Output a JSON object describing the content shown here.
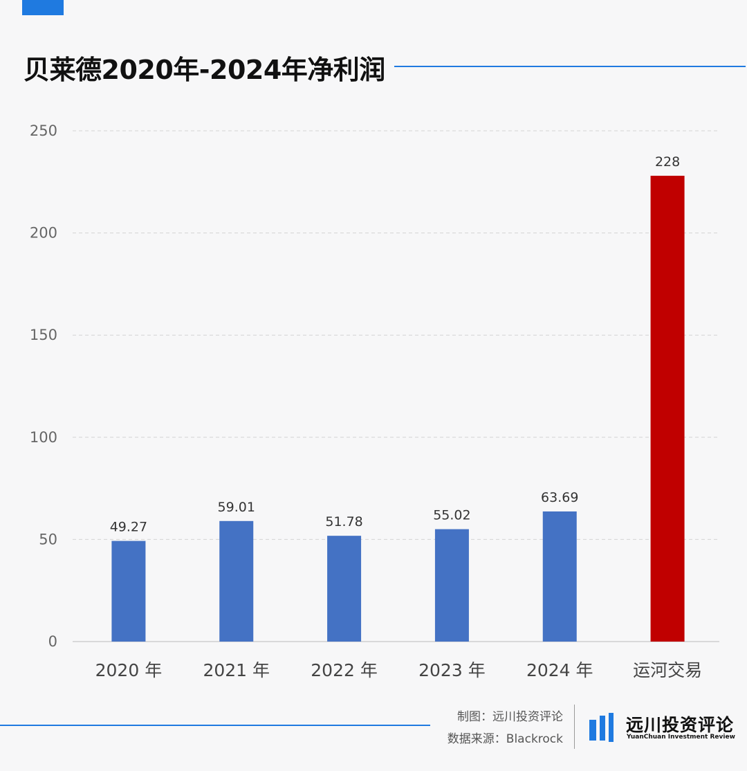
{
  "header": {
    "title": "贝莱德2020年-2024年净利润"
  },
  "chart_data": {
    "type": "bar",
    "title": "贝莱德2020年-2024年净利润",
    "xlabel": "",
    "ylabel": "",
    "categories": [
      "2020 年",
      "2021 年",
      "2022 年",
      "2023 年",
      "2024 年",
      "运河交易"
    ],
    "values": [
      49.27,
      59.01,
      51.78,
      55.02,
      63.69,
      228
    ],
    "value_labels": [
      "49.27",
      "59.01",
      "51.78",
      "55.02",
      "63.69",
      "228"
    ],
    "ylim": [
      0,
      250
    ],
    "yticks": [
      0,
      50,
      100,
      150,
      200,
      250
    ],
    "grid": true,
    "colors": [
      "#4472c4",
      "#4472c4",
      "#4472c4",
      "#4472c4",
      "#4472c4",
      "#c00000"
    ]
  },
  "footer": {
    "credit_maker": "制图：远川投资评论",
    "credit_source": "数据来源：Blackrock",
    "logo_cn": "远川投资评论",
    "logo_en": "YuanChuan Investment Review",
    "accent_color": "#1f7ae0"
  }
}
